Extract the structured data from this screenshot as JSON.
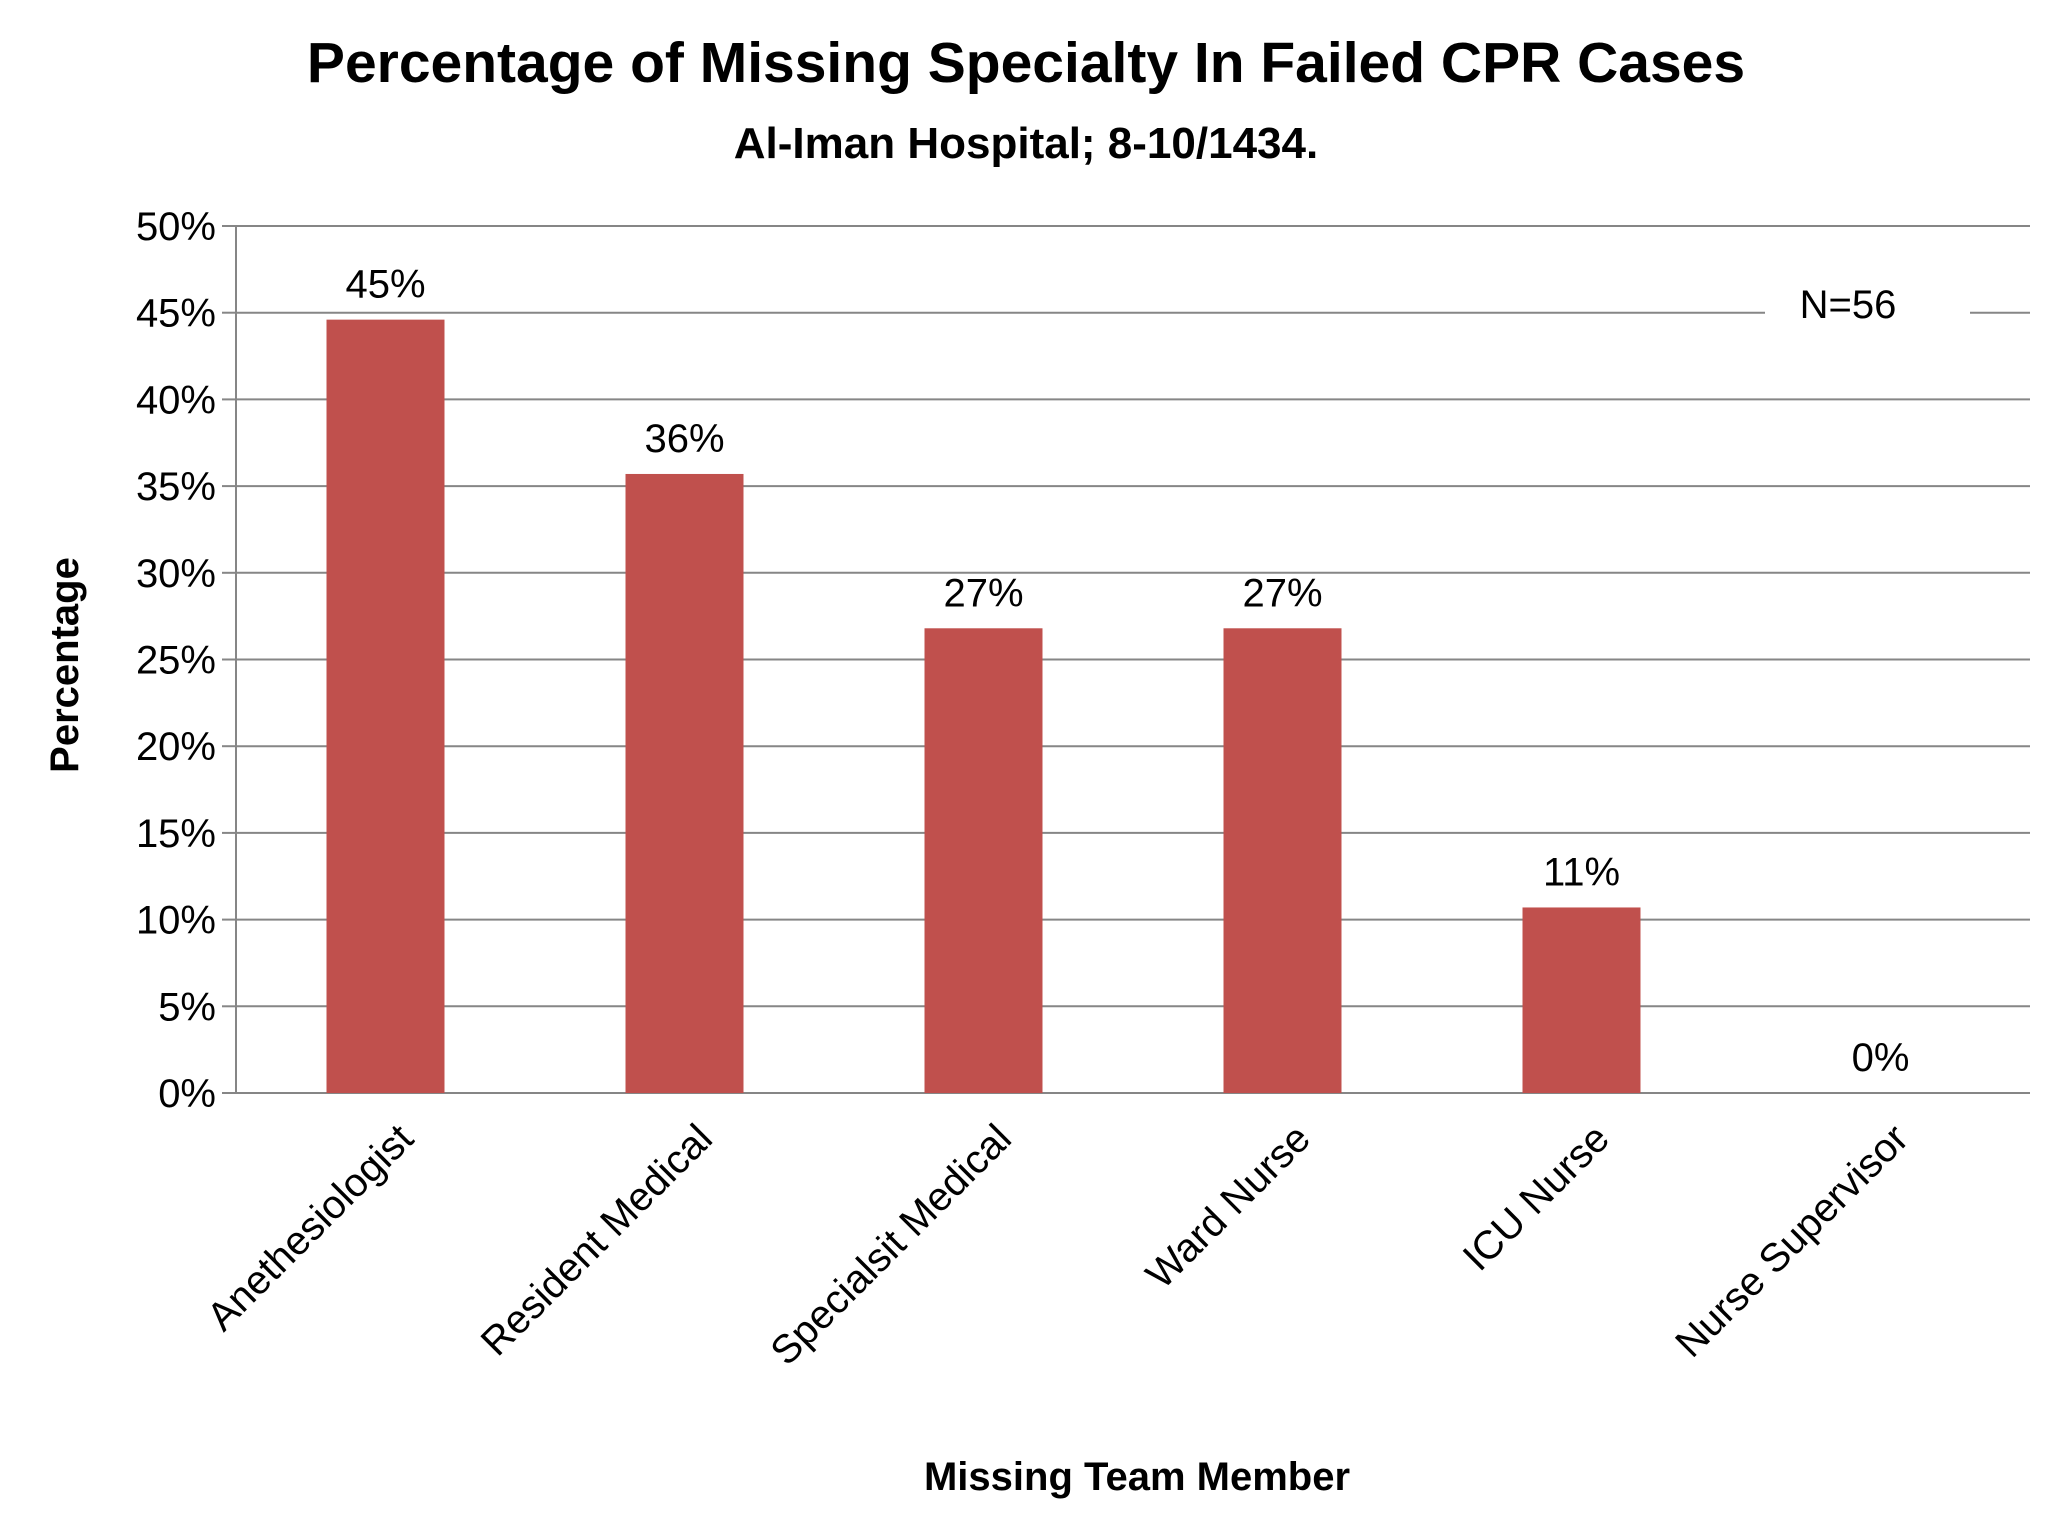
{
  "chart_data": {
    "type": "bar",
    "title": "Percentage of Missing Specialty In Failed CPR Cases",
    "subtitle": "Al-Iman Hospital; 8-10/1434.",
    "xlabel": "Missing Team Member",
    "ylabel": "Percentage",
    "categories": [
      "Anethesiologist",
      "Resident Medical",
      "Specialsit Medical",
      "Ward Nurse",
      "ICU Nurse",
      "Nurse Supervisor"
    ],
    "values": [
      44.6,
      35.7,
      26.8,
      26.8,
      10.7,
      0
    ],
    "data_labels": [
      "45%",
      "36%",
      "27%",
      "27%",
      "11%",
      "0%"
    ],
    "ylim": [
      0,
      50
    ],
    "yticks": [
      "0%",
      "5%",
      "10%",
      "15%",
      "20%",
      "25%",
      "30%",
      "35%",
      "40%",
      "45%",
      "50%"
    ],
    "annotation": "N=56",
    "grid": true,
    "legend": "none",
    "bar_color": "#c0504d",
    "grid_color": "#868686"
  }
}
